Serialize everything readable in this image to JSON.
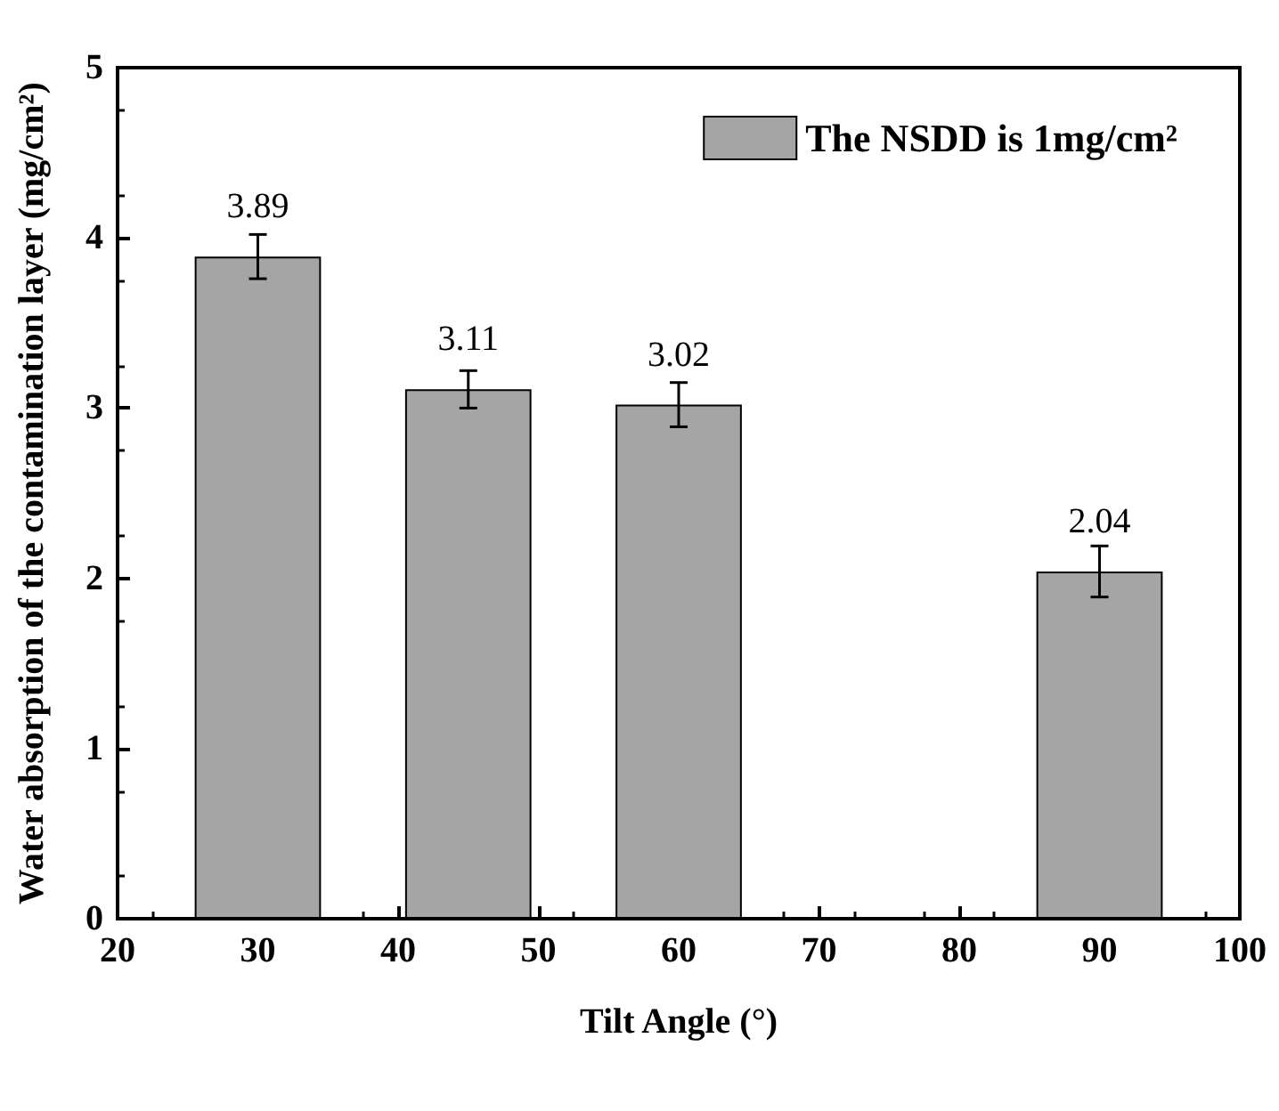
{
  "chart_data": {
    "type": "bar",
    "xlabel": "Tilt Angle (°)",
    "ylabel": "Water absorption of the contamination layer (mg/cm²)",
    "x": [
      30,
      45,
      60,
      90
    ],
    "series": [
      {
        "name": "The NSDD is 1mg/cm²",
        "color": "#a5a5a5",
        "values": [
          3.89,
          3.11,
          3.02,
          2.04
        ],
        "errors": [
          0.13,
          0.11,
          0.13,
          0.15
        ]
      }
    ],
    "xlim": [
      20,
      100
    ],
    "xticks": [
      20,
      30,
      40,
      50,
      60,
      70,
      80,
      90,
      100
    ],
    "ylim": [
      0,
      5
    ],
    "yticks": [
      0,
      1,
      2,
      3,
      4,
      5
    ],
    "data_labels": true,
    "legend": "top right",
    "grid": false
  }
}
